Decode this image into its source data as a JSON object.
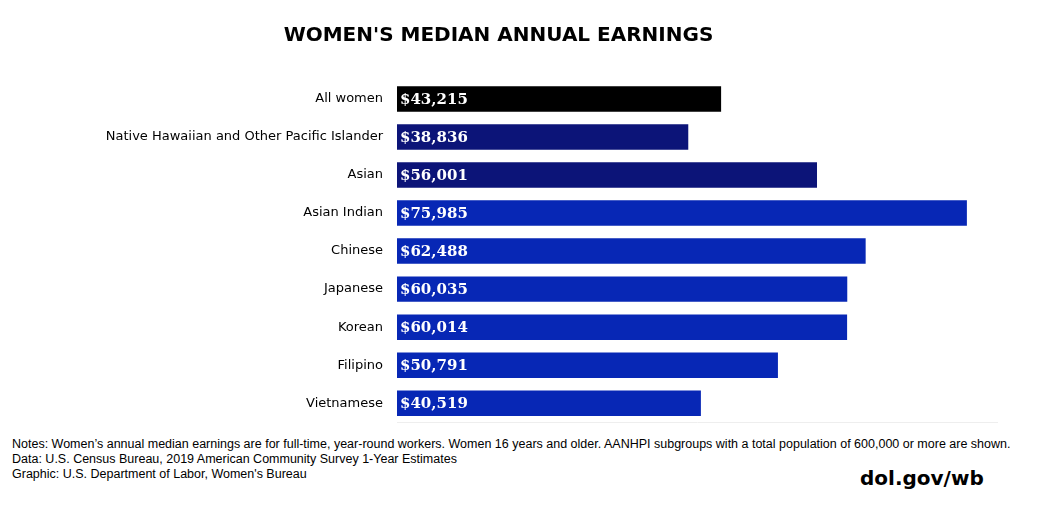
{
  "chart_data": {
    "type": "bar",
    "orientation": "horizontal",
    "title": "WOMEN'S MEDIAN ANNUAL EARNINGS",
    "categories": [
      "All women",
      "Native Hawaiian and Other Pacific Islander",
      "Asian",
      "Asian Indian",
      "Chinese",
      "Japanese",
      "Korean",
      "Filipino",
      "Vietnamese"
    ],
    "values": [
      43215,
      38836,
      56001,
      75985,
      62488,
      60035,
      60014,
      50791,
      40519
    ],
    "value_labels": [
      "$43,215",
      "$38,836",
      "$56,001",
      "$75,985",
      "$62,488",
      "$60,035",
      "$60,014",
      "$50,791",
      "$40,519"
    ],
    "colors": [
      "#000000",
      "#0c1478",
      "#0c1478",
      "#0727b5",
      "#0727b5",
      "#0727b5",
      "#0727b5",
      "#0727b5",
      "#0727b5"
    ],
    "xlim": [
      0,
      80000
    ],
    "data_labels": true,
    "tick_labels": "y",
    "grid": false,
    "annotations": [
      "Notes: Women’s annual median earnings are for full-time, year-round workers. Women 16 years and older. AANHPI subgroups with a total population of 600,000 or more are shown.",
      "Data: U.S. Census Bureau, 2019 American Community Survey 1-Year Estimates",
      "Graphic: U.S. Department of Labor, Women's Bureau"
    ],
    "watermark": "dol.gov/wb"
  }
}
